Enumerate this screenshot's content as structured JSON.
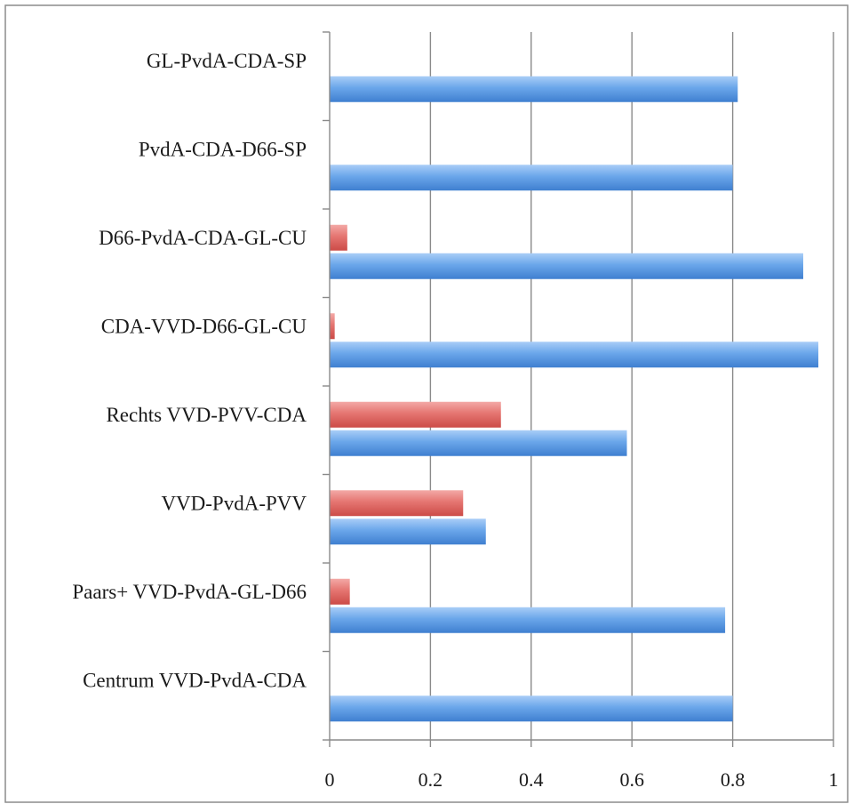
{
  "chart_data": {
    "type": "bar",
    "orientation": "horizontal",
    "title": "",
    "xlabel": "",
    "ylabel": "",
    "xlim": [
      0,
      1
    ],
    "x_ticks": [
      "0",
      "0.2",
      "0.4",
      "0.6",
      "0.8",
      "1"
    ],
    "x_tick_values": [
      0,
      0.2,
      0.4,
      0.6,
      0.8,
      1
    ],
    "grid": "vertical",
    "legend": "none",
    "categories": [
      "Centrum VVD-PvdA-CDA",
      "Paars+ VVD-PvdA-GL-D66",
      "VVD-PvdA-PVV",
      "Rechts VVD-PVV-CDA",
      "CDA-VVD-D66-GL-CU",
      "D66-PvdA-CDA-GL-CU",
      "PvdA-CDA-D66-SP",
      "GL-PvdA-CDA-SP"
    ],
    "series": [
      {
        "color": "#5b9be0",
        "values": [
          0.8,
          0.785,
          0.31,
          0.59,
          0.97,
          0.94,
          0.8,
          0.81
        ]
      },
      {
        "color": "#e06666",
        "values": [
          0.0,
          0.04,
          0.265,
          0.34,
          0.01,
          0.035,
          0.0,
          0.0
        ]
      }
    ]
  }
}
